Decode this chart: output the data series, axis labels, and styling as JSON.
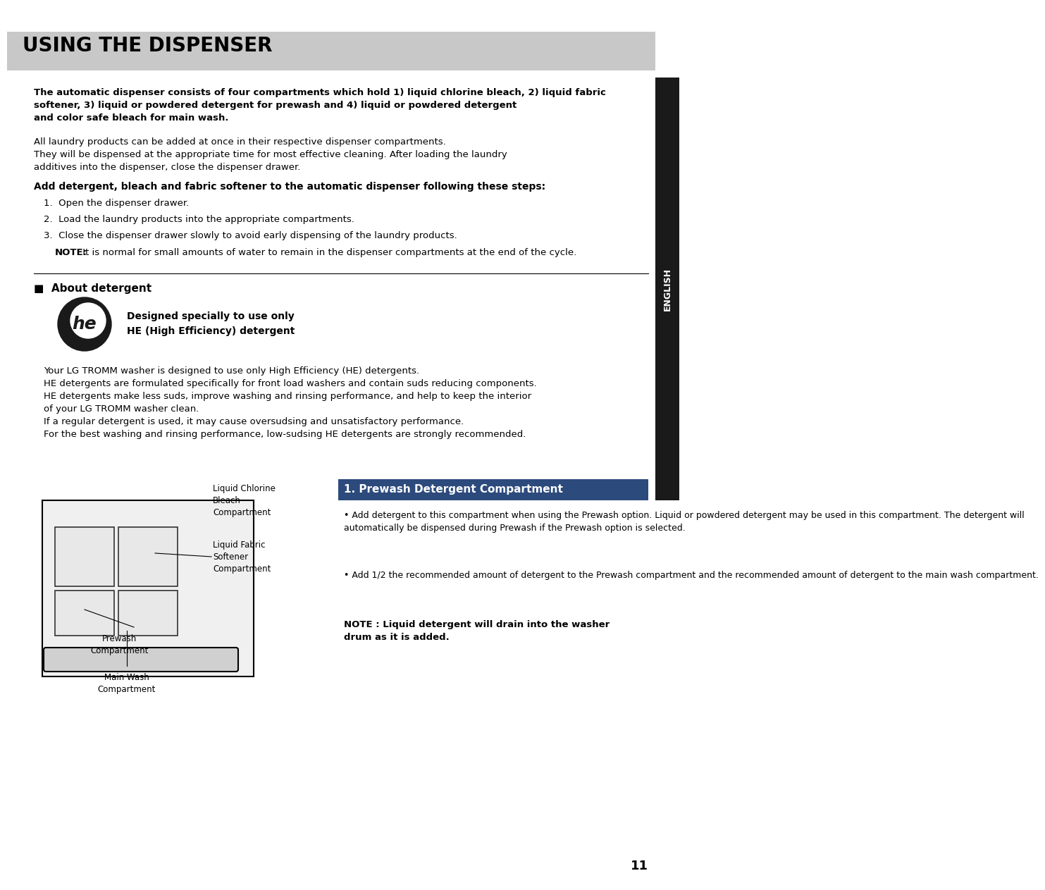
{
  "page_bg": "#ffffff",
  "header_bg": "#c8c8c8",
  "header_text": "USING THE DISPENSER",
  "header_text_color": "#000000",
  "sidebar_bg": "#1a1a1a",
  "sidebar_text": "ENGLISH",
  "sidebar_text_color": "#ffffff",
  "page_number": "11",
  "intro_bold_text": "The automatic dispenser consists of four compartments which hold 1) liquid chlorine bleach, 2) liquid fabric\nsoftener, 3) liquid or powdered detergent for prewash and 4) liquid or powdered detergent\nand color safe bleach for main wash.",
  "intro_normal_text": "All laundry products can be added at once in their respective dispenser compartments.\nThey will be dispensed at the appropriate time for most effective cleaning. After loading the laundry\nadditives into the dispenser, close the dispenser drawer.",
  "steps_heading": "Add detergent, bleach and fabric softener to the automatic dispenser following these steps:",
  "steps": [
    "1.  Open the dispenser drawer.",
    "2.  Load the laundry products into the appropriate compartments.",
    "3.  Close the dispenser drawer slowly to avoid early dispensing of the laundry products."
  ],
  "note_bold": "NOTE:",
  "note_text": " It is normal for small amounts of water to remain in the dispenser compartments at the end of the cycle.",
  "about_heading": "■  About detergent",
  "he_bold_text": "Designed specially to use only\nHE (High Efficiency) detergent",
  "he_paragraph": "Your LG TROMM washer is designed to use only High Efficiency (HE) detergents.\nHE detergents are formulated specifically for front load washers and contain suds reducing components.\nHE detergents make less suds, improve washing and rinsing performance, and help to keep the interior\nof your LG TROMM washer clean.\nIf a regular detergent is used, it may cause oversudsing and unsatisfactory performance.\nFor the best washing and rinsing performance, low-sudsing HE detergents are strongly recommended.",
  "section1_heading": "1. Prewash Detergent Compartment",
  "section1_bullet1": "• Add detergent to this compartment when using the Prewash option. Liquid or powdered detergent may be used in this compartment. The detergent will automatically be dispensed during Prewash if the Prewash option is selected.",
  "section1_bullet2": "• Add 1/2 the recommended amount of detergent to the Prewash compartment and the recommended amount of detergent to the main wash compartment.",
  "section1_note": "NOTE : Liquid detergent will drain into the washer\ndrum as it is added.",
  "diagram_labels": {
    "liquid_chlorine": "Liquid Chlorine\nBleach\nCompartment",
    "liquid_fabric": "Liquid Fabric\nSoftener\nCompartment",
    "prewash": "Prewash\nCompartment",
    "main_wash": "Main Wash\nCompartment"
  }
}
